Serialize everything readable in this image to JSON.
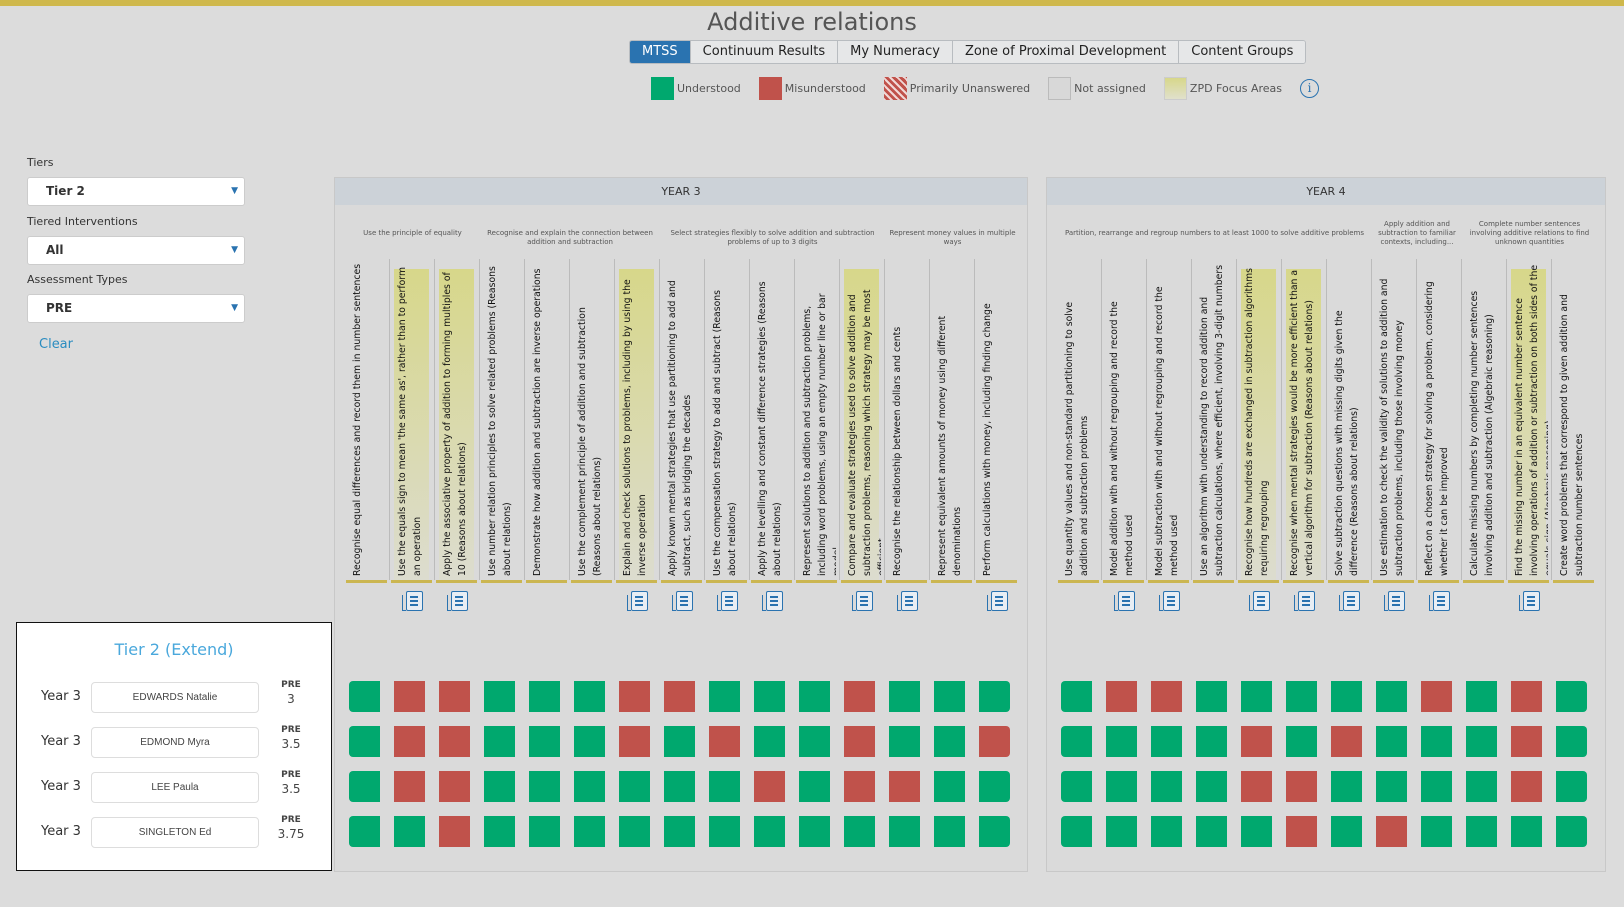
{
  "header": {
    "title": "Additive relations"
  },
  "tabs": [
    {
      "label": "MTSS",
      "active": true
    },
    {
      "label": "Continuum Results"
    },
    {
      "label": "My Numeracy"
    },
    {
      "label": "Zone of Proximal Development"
    },
    {
      "label": "Content Groups"
    }
  ],
  "legend": [
    {
      "label": "Understood",
      "color": "#00a86e"
    },
    {
      "label": "Misunderstood",
      "color": "#c0524b"
    },
    {
      "label": "Primarily Unanswered",
      "color": "#c0524b"
    },
    {
      "label": "Not assigned",
      "color": "#d8d8d8"
    },
    {
      "label": "ZPD Focus Areas",
      "color": "#d7d78a"
    }
  ],
  "legend_info": "i",
  "filters": {
    "tiers_label": "Tiers",
    "tiers_value": "Tier 2",
    "interventions_label": "Tiered Interventions",
    "interventions_value": "All",
    "assessment_label": "Assessment Types",
    "assessment_value": "PRE",
    "clear_label": "Clear"
  },
  "colors": {
    "U": "#00a86e",
    "M": "#c0524b"
  },
  "years": [
    {
      "title": "YEAR 3",
      "groups": [
        {
          "label": "Use the principle of equality",
          "span": 3
        },
        {
          "label": "Recognise and explain the connection between addition and subtraction",
          "span": 4
        },
        {
          "label": "Select strategies flexibly to solve addition and subtraction problems of up to 3 digits",
          "span": 5
        },
        {
          "label": "Represent money values in multiple ways",
          "span": 3
        }
      ],
      "columns": [
        {
          "label": "Recognise equal differences and record them in number sentences",
          "zpd": false,
          "doc": false
        },
        {
          "label": "Use the equals sign to mean 'the same as', rather than to perform an operation",
          "zpd": true,
          "doc": true
        },
        {
          "label": "Apply the associative property of addition to forming multiples of 10 (Reasons about relations)",
          "zpd": true,
          "doc": true
        },
        {
          "label": "Use number relation principles to solve related problems (Reasons about relations)",
          "zpd": false,
          "doc": false
        },
        {
          "label": "Demonstrate how addition and subtraction are inverse operations",
          "zpd": false,
          "doc": false
        },
        {
          "label": "Use the complement principle of addition and subtraction (Reasons about relations)",
          "zpd": false,
          "doc": false
        },
        {
          "label": "Explain and check solutions to problems, including by using the inverse operation",
          "zpd": true,
          "doc": true
        },
        {
          "label": "Apply known mental strategies that use partitioning to add and subtract, such as bridging the decades",
          "zpd": false,
          "doc": true
        },
        {
          "label": "Use the compensation strategy to add and subtract (Reasons about relations)",
          "zpd": false,
          "doc": true
        },
        {
          "label": "Apply the levelling and constant difference strategies (Reasons about relations)",
          "zpd": false,
          "doc": true
        },
        {
          "label": "Represent solutions to addition and subtraction problems, including word problems, using an empty number line or bar model",
          "zpd": false,
          "doc": false
        },
        {
          "label": "Compare and evaluate strategies used to solve addition and subtraction problems, reasoning which strategy may be most efficient",
          "zpd": true,
          "doc": true
        },
        {
          "label": "Recognise the relationship between dollars and cents",
          "zpd": false,
          "doc": true
        },
        {
          "label": "Represent equivalent amounts of money using different denominations",
          "zpd": false,
          "doc": false
        },
        {
          "label": "Perform calculations with money, including finding change",
          "zpd": false,
          "doc": true
        }
      ],
      "results": [
        [
          "U",
          "M",
          "M",
          "U",
          "U",
          "U",
          "M",
          "M",
          "U",
          "U",
          "U",
          "M",
          "U",
          "U",
          "U"
        ],
        [
          "U",
          "M",
          "M",
          "U",
          "U",
          "U",
          "M",
          "U",
          "M",
          "U",
          "U",
          "M",
          "U",
          "U",
          "M"
        ],
        [
          "U",
          "M",
          "M",
          "U",
          "U",
          "U",
          "U",
          "U",
          "U",
          "M",
          "U",
          "M",
          "M",
          "U",
          "U"
        ],
        [
          "U",
          "U",
          "M",
          "U",
          "U",
          "U",
          "U",
          "U",
          "U",
          "U",
          "U",
          "U",
          "U",
          "U",
          "U"
        ]
      ]
    },
    {
      "title": "YEAR 4",
      "groups": [
        {
          "label": "Partition, rearrange and regroup numbers to at least 1000 to solve additive problems",
          "span": 7
        },
        {
          "label": "Apply addition and subtraction to familiar contexts, including...",
          "span": 2
        },
        {
          "label": "Complete number sentences involving additive relations to find unknown quantities",
          "span": 3
        }
      ],
      "columns": [
        {
          "label": "Use quantity values and non-standard partitioning to solve addition and subtraction problems",
          "zpd": false,
          "doc": false
        },
        {
          "label": "Model addition with and without regrouping and record the method used",
          "zpd": false,
          "doc": true
        },
        {
          "label": "Model subtraction with and without regrouping and record the method used",
          "zpd": false,
          "doc": true
        },
        {
          "label": "Use an algorithm with understanding to record addition and subtraction calculations, where efficient, involving 3-digit numbers",
          "zpd": false,
          "doc": false
        },
        {
          "label": "Recognise how hundreds are exchanged in subtraction algorithms requiring regrouping",
          "zpd": true,
          "doc": true
        },
        {
          "label": "Recognise when mental strategies would be more efficient than a vertical algorithm for subtraction (Reasons about relations)",
          "zpd": true,
          "doc": true
        },
        {
          "label": "Solve subtraction questions with missing digits given the difference (Reasons about relations)",
          "zpd": false,
          "doc": true
        },
        {
          "label": "Use estimation to check the validity of solutions to addition and subtraction problems, including those involving money",
          "zpd": false,
          "doc": true
        },
        {
          "label": "Reflect on a chosen strategy for solving a problem, considering whether it can be improved",
          "zpd": false,
          "doc": true
        },
        {
          "label": "Calculate missing numbers by completing number sentences involving addition and subtraction (Algebraic reasoning)",
          "zpd": false,
          "doc": false
        },
        {
          "label": "Find the missing number in an equivalent number sentence involving operations of addition or subtraction on both sides of the equals sign (Algebraic reasoning)",
          "zpd": true,
          "doc": true
        },
        {
          "label": "Create word problems that correspond to given addition and subtraction number sentences",
          "zpd": false,
          "doc": false
        }
      ],
      "results": [
        [
          "U",
          "M",
          "M",
          "U",
          "U",
          "U",
          "U",
          "U",
          "M",
          "U",
          "M",
          "U"
        ],
        [
          "U",
          "U",
          "U",
          "U",
          "M",
          "U",
          "M",
          "U",
          "U",
          "U",
          "M",
          "U"
        ],
        [
          "U",
          "U",
          "U",
          "U",
          "M",
          "M",
          "U",
          "U",
          "U",
          "U",
          "M",
          "U"
        ],
        [
          "U",
          "U",
          "U",
          "U",
          "U",
          "M",
          "U",
          "M",
          "U",
          "U",
          "U",
          "U"
        ]
      ]
    }
  ],
  "students": {
    "title": "Tier 2 (Extend)",
    "rows": [
      {
        "year": "Year 3",
        "name": "EDWARDS Natalie",
        "type": "PRE",
        "score": "3"
      },
      {
        "year": "Year 3",
        "name": "EDMOND Myra",
        "type": "PRE",
        "score": "3.5"
      },
      {
        "year": "Year 3",
        "name": "LEE Paula",
        "type": "PRE",
        "score": "3.5"
      },
      {
        "year": "Year 3",
        "name": "SINGLETON Ed",
        "type": "PRE",
        "score": "3.75"
      }
    ]
  }
}
